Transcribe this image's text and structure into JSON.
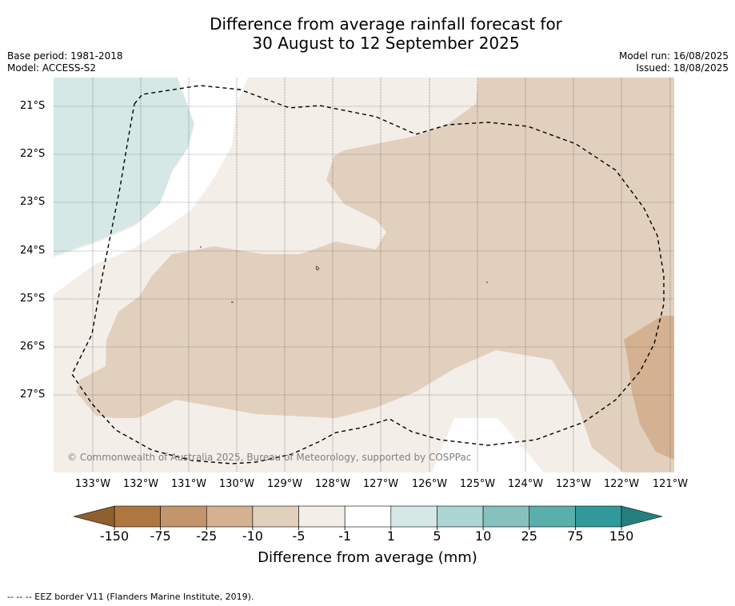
{
  "title_lines": [
    "Difference from average rainfall forecast for",
    "30 August to 12 September 2025"
  ],
  "meta_left": [
    "Base period: 1981-2018",
    "Model: ACCESS-S2"
  ],
  "meta_right": [
    "Model run: 16/08/2025",
    "Issued: 18/08/2025"
  ],
  "latitude_labels": [
    "21°S",
    "22°S",
    "23°S",
    "24°S",
    "25°S",
    "26°S",
    "27°S"
  ],
  "longitude_labels": [
    "133°W",
    "132°W",
    "131°W",
    "130°W",
    "129°W",
    "128°W",
    "127°W",
    "126°W",
    "125°W",
    "124°W",
    "123°W",
    "122°W",
    "121°W"
  ],
  "copyright": "© Commonwealth of Australia 2025, Bureau of Meteorology, supported by COSPPac",
  "colorbar": {
    "title": "Difference from average (mm)",
    "tick_labels": [
      "-150",
      "-75",
      "-25",
      "-10",
      "-5",
      "-1",
      "1",
      "5",
      "10",
      "25",
      "75",
      "150"
    ],
    "colors": [
      "#ae7740",
      "#c3956a",
      "#d3b191",
      "#e2d0bf",
      "#f4eee8",
      "#ffffff",
      "#d5e8e6",
      "#abd5d3",
      "#86c1be",
      "#5aaeab",
      "#31999a"
    ],
    "extend_low_color": "#8f5f2c",
    "extend_high_color": "#267f7f"
  },
  "legend_footer": "--  --  -- EEZ border V11 (Flanders Marine Institute, 2019)."
}
